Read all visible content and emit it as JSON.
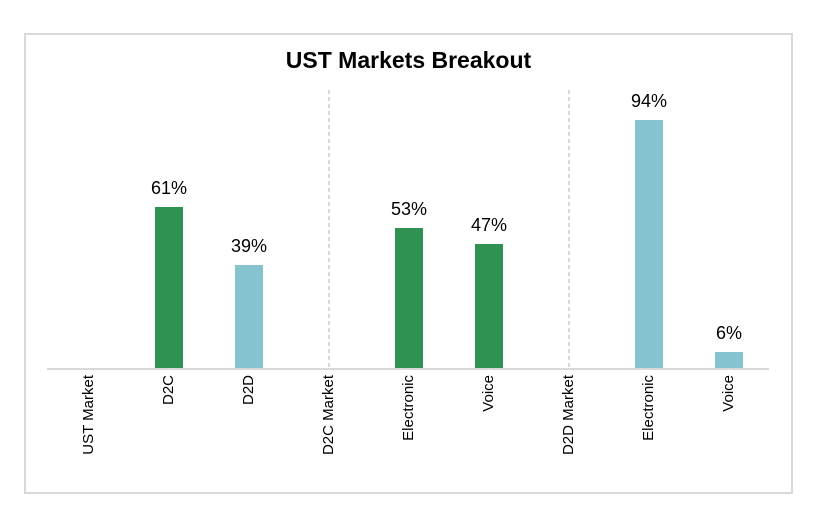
{
  "chart": {
    "frame_border_color": "#d9d9d9",
    "axis_color": "#d9d9d9",
    "separator_color": "#d9d9d9",
    "text_color": "#000000",
    "background": "#ffffff"
  },
  "chart_data": {
    "type": "bar",
    "title": "UST Markets Breakout",
    "categories": [
      "UST Market",
      "D2C",
      "D2D",
      "D2C Market",
      "Electronic",
      "Voice",
      "D2D Market",
      "Electronic",
      "Voice"
    ],
    "values": [
      null,
      61,
      39,
      null,
      53,
      47,
      null,
      94,
      6
    ],
    "data_labels": [
      "",
      "61%",
      "39%",
      "",
      "53%",
      "47%",
      "",
      "94%",
      "6%"
    ],
    "bar_colors": [
      null,
      "#2f9152",
      "#85c4ce",
      null,
      "#2f9152",
      "#2f9152",
      null,
      "#85c4ce",
      "#85c4ce"
    ],
    "separator_indices": [
      3,
      6
    ],
    "unit": "%",
    "ylim": [
      0,
      105
    ],
    "xlabel": "",
    "ylabel": "",
    "grid": "off",
    "legend": "none",
    "x_tick_rotation_degrees": 90,
    "color_legend_semantics": {
      "#2f9152": "D2C related bars (green)",
      "#85c4ce": "D2D related bars (teal)"
    }
  }
}
